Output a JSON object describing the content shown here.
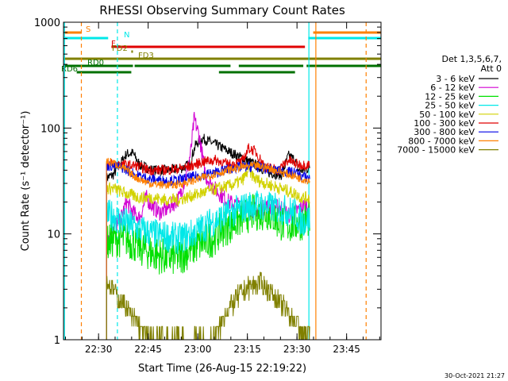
{
  "chart_data": {
    "type": "line",
    "title": "RHESSI Observing Summary Count Rates",
    "xlabel": "Start Time (26-Aug-15 22:19:22)",
    "ylabel": "Count Rate (s⁻¹ detector⁻¹)",
    "x_unit": "minutes after 22:19:22",
    "xlim": [
      0,
      96
    ],
    "ylim": [
      1,
      1000
    ],
    "yscale": "log",
    "x_ticks": [
      {
        "t": 10.6,
        "label": "22:30"
      },
      {
        "t": 25.6,
        "label": "22:45"
      },
      {
        "t": 40.6,
        "label": "23:00"
      },
      {
        "t": 55.6,
        "label": "23:15"
      },
      {
        "t": 70.6,
        "label": "23:30"
      },
      {
        "t": 85.6,
        "label": "23:45"
      }
    ],
    "y_ticks": [
      {
        "v": 1,
        "label": "1"
      },
      {
        "v": 10,
        "label": "10"
      },
      {
        "v": 100,
        "label": "100"
      },
      {
        "v": 1000,
        "label": "1000"
      }
    ],
    "legend": {
      "position": "right",
      "header": [
        "Det 1,3,5,6,7,",
        "Att 0"
      ],
      "entries": [
        {
          "label": "3 - 6 keV",
          "color": "#000000"
        },
        {
          "label": "6 - 12 keV",
          "color": "#d200d2"
        },
        {
          "label": "12 - 25 keV",
          "color": "#00e000"
        },
        {
          "label": "25 - 50 keV",
          "color": "#00e8e8"
        },
        {
          "label": "50 - 100 keV",
          "color": "#d2d200"
        },
        {
          "label": "100 - 300 keV",
          "color": "#e00000"
        },
        {
          "label": "300 - 800 keV",
          "color": "#0000e6"
        },
        {
          "label": "800 - 7000 keV",
          "color": "#ff8000"
        },
        {
          "label": "7000 - 15000 keV",
          "color": "#808000"
        }
      ]
    },
    "series": [
      {
        "name": "3 - 6 keV",
        "color": "#000000",
        "noise": 0.05,
        "points": [
          [
            13,
            34
          ],
          [
            15,
            36
          ],
          [
            17,
            45
          ],
          [
            19,
            57
          ],
          [
            21,
            58
          ],
          [
            23,
            45
          ],
          [
            27,
            40
          ],
          [
            31,
            40
          ],
          [
            35,
            41
          ],
          [
            38,
            45
          ],
          [
            40,
            70
          ],
          [
            42,
            80
          ],
          [
            46,
            70
          ],
          [
            50,
            60
          ],
          [
            54,
            52
          ],
          [
            58,
            45
          ],
          [
            62,
            38
          ],
          [
            66,
            36
          ],
          [
            68,
            55
          ],
          [
            70,
            50
          ],
          [
            71,
            40
          ],
          [
            73,
            40
          ],
          [
            74.5,
            43
          ]
        ]
      },
      {
        "name": "6 - 12 keV",
        "color": "#d200d2",
        "noise": 0.08,
        "points": [
          [
            13,
            9.5
          ],
          [
            14,
            10
          ],
          [
            15,
            12
          ],
          [
            17,
            13
          ],
          [
            19,
            20
          ],
          [
            21,
            16
          ],
          [
            23,
            14
          ],
          [
            25,
            22
          ],
          [
            27,
            18
          ],
          [
            29,
            16
          ],
          [
            31,
            17
          ],
          [
            33,
            19
          ],
          [
            35,
            22
          ],
          [
            37,
            35
          ],
          [
            38.5,
            60
          ],
          [
            39.5,
            122
          ],
          [
            41,
            85
          ],
          [
            43,
            35
          ],
          [
            46,
            26
          ],
          [
            50,
            20
          ],
          [
            54,
            18
          ],
          [
            58,
            17
          ],
          [
            62,
            18
          ],
          [
            66,
            18
          ],
          [
            68,
            15
          ],
          [
            70,
            16
          ],
          [
            72,
            18
          ],
          [
            74.5,
            19
          ]
        ]
      },
      {
        "name": "12 - 25 keV",
        "color": "#00e000",
        "noise": 0.18,
        "points": [
          [
            13,
            8
          ],
          [
            15,
            9
          ],
          [
            19,
            9
          ],
          [
            23,
            7.5
          ],
          [
            27,
            6.5
          ],
          [
            31,
            6
          ],
          [
            35,
            6
          ],
          [
            38,
            7
          ],
          [
            41,
            8
          ],
          [
            45,
            9
          ],
          [
            48,
            11
          ],
          [
            52,
            13
          ],
          [
            55,
            15
          ],
          [
            58,
            16
          ],
          [
            62,
            16
          ],
          [
            65,
            13
          ],
          [
            68,
            12
          ],
          [
            72,
            13
          ],
          [
            74.5,
            14
          ]
        ]
      },
      {
        "name": "25 - 50 keV",
        "color": "#00e8e8",
        "noise": 0.15,
        "points": [
          [
            13,
            15
          ],
          [
            15,
            15
          ],
          [
            18,
            13
          ],
          [
            23,
            11
          ],
          [
            27,
            10
          ],
          [
            31,
            9.5
          ],
          [
            35,
            9
          ],
          [
            39,
            10
          ],
          [
            43,
            12
          ],
          [
            47,
            14
          ],
          [
            51,
            16
          ],
          [
            55,
            18
          ],
          [
            58,
            19
          ],
          [
            62,
            18
          ],
          [
            66,
            17
          ],
          [
            70,
            16
          ],
          [
            72,
            13
          ],
          [
            74.5,
            14
          ]
        ]
      },
      {
        "name": "50 - 100 keV",
        "color": "#d2d200",
        "noise": 0.06,
        "points": [
          [
            13,
            27
          ],
          [
            15,
            27
          ],
          [
            19,
            24
          ],
          [
            23,
            22
          ],
          [
            27,
            22
          ],
          [
            31,
            21
          ],
          [
            35,
            21
          ],
          [
            39,
            23
          ],
          [
            43,
            25
          ],
          [
            47,
            27
          ],
          [
            51,
            29
          ],
          [
            54,
            32
          ],
          [
            56,
            40
          ],
          [
            58,
            33
          ],
          [
            61,
            30
          ],
          [
            64,
            28
          ],
          [
            67,
            26
          ],
          [
            70,
            24
          ],
          [
            72,
            22
          ],
          [
            74.5,
            22
          ]
        ]
      },
      {
        "name": "100 - 300 keV",
        "color": "#e00000",
        "noise": 0.05,
        "points": [
          [
            13,
            46
          ],
          [
            15,
            46
          ],
          [
            18,
            45
          ],
          [
            22,
            44
          ],
          [
            26,
            40
          ],
          [
            30,
            40
          ],
          [
            34,
            41
          ],
          [
            38,
            43
          ],
          [
            42,
            48
          ],
          [
            46,
            50
          ],
          [
            50,
            45
          ],
          [
            54,
            48
          ],
          [
            56,
            65
          ],
          [
            58,
            60
          ],
          [
            61,
            43
          ],
          [
            65,
            40
          ],
          [
            68,
            50
          ],
          [
            70,
            46
          ],
          [
            72,
            45
          ],
          [
            74.5,
            45
          ]
        ]
      },
      {
        "name": "300 - 800 keV",
        "color": "#0000e6",
        "noise": 0.05,
        "points": [
          [
            13,
            44
          ],
          [
            15,
            44
          ],
          [
            18,
            42
          ],
          [
            22,
            36
          ],
          [
            26,
            33
          ],
          [
            30,
            32
          ],
          [
            34,
            32
          ],
          [
            38,
            34
          ],
          [
            42,
            36
          ],
          [
            46,
            38
          ],
          [
            50,
            41
          ],
          [
            54,
            43
          ],
          [
            58,
            43
          ],
          [
            62,
            41
          ],
          [
            66,
            39
          ],
          [
            70,
            38
          ],
          [
            72,
            35
          ],
          [
            74.5,
            34
          ]
        ]
      },
      {
        "name": "800 - 7000 keV",
        "color": "#ff8000",
        "noise": 0.04,
        "points": [
          [
            13,
            49
          ],
          [
            15,
            47
          ],
          [
            18,
            42
          ],
          [
            22,
            34
          ],
          [
            26,
            30
          ],
          [
            30,
            29
          ],
          [
            34,
            29
          ],
          [
            38,
            31
          ],
          [
            42,
            34
          ],
          [
            46,
            37
          ],
          [
            50,
            40
          ],
          [
            54,
            43
          ],
          [
            58,
            44
          ],
          [
            62,
            42
          ],
          [
            66,
            38
          ],
          [
            70,
            35
          ],
          [
            72,
            33
          ],
          [
            74.5,
            32
          ]
        ]
      },
      {
        "name": "7000 - 15000 keV",
        "color": "#808000",
        "noise": 0.1,
        "points": [
          [
            13,
            3.5
          ],
          [
            15,
            3
          ],
          [
            17,
            2.4
          ],
          [
            19,
            2
          ],
          [
            21,
            1.6
          ],
          [
            23,
            1.3
          ],
          [
            25,
            1.1
          ],
          [
            27,
            1
          ],
          [
            32,
            1
          ],
          [
            38,
            1
          ],
          [
            44,
            1
          ],
          [
            47,
            1.3
          ],
          [
            49,
            1.8
          ],
          [
            52,
            2.4
          ],
          [
            55,
            3
          ],
          [
            59,
            3.5
          ],
          [
            62,
            3
          ],
          [
            65,
            2.3
          ],
          [
            68,
            1.8
          ],
          [
            70,
            1.5
          ],
          [
            72,
            1.2
          ],
          [
            74.5,
            1.2
          ]
        ]
      }
    ],
    "flag_bars": [
      {
        "label": "S",
        "color": "#ff8000",
        "y": 41,
        "segments": [
          [
            0,
            5.5
          ],
          [
            75.5,
            96
          ]
        ]
      },
      {
        "label": "N",
        "color": "#00e8e8",
        "y": 48,
        "segments": [
          [
            0,
            13.5
          ],
          [
            74,
            96
          ]
        ]
      },
      {
        "label": "F",
        "color": "#e00000",
        "y": 59,
        "segments": [
          [
            14.5,
            73
          ]
        ]
      },
      {
        "label": "FD2",
        "color": "#808000",
        "y": 65,
        "segments": [
          [
            20.5,
            21
          ]
        ]
      },
      {
        "label": "FD3",
        "color": "#808000",
        "y": 74,
        "segments": [
          [
            0,
            96
          ]
        ]
      },
      {
        "label": "RD0",
        "color": "#007000",
        "y": 83,
        "segments": [
          [
            0,
            21
          ],
          [
            21.5,
            50.5
          ],
          [
            53,
            72.5
          ],
          [
            73.5,
            96
          ]
        ]
      },
      {
        "label": "RD6",
        "color": "#007000",
        "y": 91,
        "segments": [
          [
            4,
            20.5
          ],
          [
            47,
            70
          ]
        ]
      }
    ],
    "vlines": [
      {
        "t": 5.4,
        "color": "#ff8000",
        "dash": true
      },
      {
        "t": 16.3,
        "color": "#00e8e8",
        "dash": true
      },
      {
        "t": 74.2,
        "color": "#00e8e8",
        "dash": false
      },
      {
        "t": 76.3,
        "color": "#ff8000",
        "dash": false
      },
      {
        "t": 91.5,
        "color": "#ff8000",
        "dash": true
      },
      {
        "t": 0.3,
        "color": "#00e8e8",
        "dash": false
      }
    ]
  },
  "footer": {
    "timestamp": "30-Oct-2021 21:27"
  }
}
